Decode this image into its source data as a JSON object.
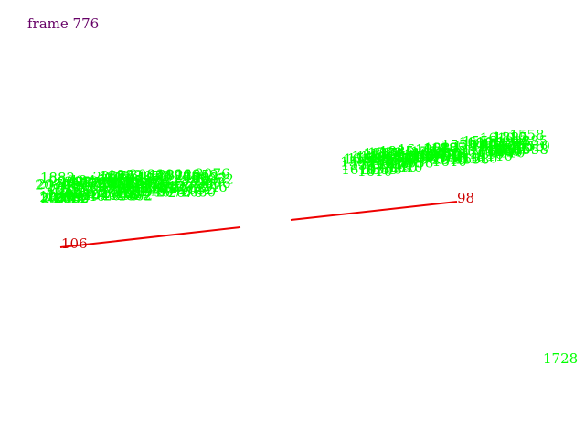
{
  "frame_label": "frame 776",
  "colors": {
    "frame_text": "#660066",
    "point_labels": "#00ff00",
    "lines": "#ee0000",
    "line_labels": "#cc0000",
    "background": "#ffffff"
  },
  "segments": [
    {
      "label": "106"
    },
    {
      "label": "98"
    }
  ],
  "clusters": [
    {
      "name": "left-cluster",
      "visible_labels": [
        "2080",
        "2076",
        "2052",
        "1946",
        "1882"
      ]
    },
    {
      "name": "right-cluster",
      "visible_labels": [
        "1558",
        "1110",
        "1610",
        "1885"
      ]
    }
  ],
  "outlier_label": "1728"
}
